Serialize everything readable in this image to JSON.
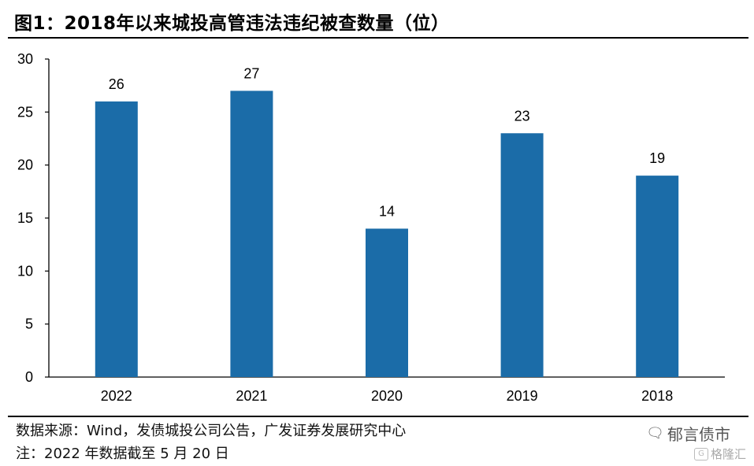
{
  "header": {
    "title": "图1：2018年以来城投高管违法违纪被查数量（位）"
  },
  "chart_data": {
    "type": "bar",
    "categories": [
      "2022",
      "2021",
      "2020",
      "2019",
      "2018"
    ],
    "values": [
      26,
      27,
      14,
      23,
      19
    ],
    "data_labels": [
      "26",
      "27",
      "14",
      "23",
      "19"
    ],
    "yticks": [
      "0",
      "5",
      "10",
      "15",
      "20",
      "25",
      "30"
    ],
    "ylim": [
      0,
      30
    ],
    "grid": false,
    "legend": "none",
    "bar_color": "#1b6ca8",
    "xlabel": "",
    "ylabel": ""
  },
  "footer": {
    "source": "数据来源：Wind，发债城投公司公告，广发证券发展研究中心",
    "note": "注：2022 年数据截至 5 月 20 日",
    "watermark": "郁言债市",
    "watermark_icon": "wechat-icon",
    "watermark2": "格隆汇",
    "watermark2_icon": "G"
  }
}
